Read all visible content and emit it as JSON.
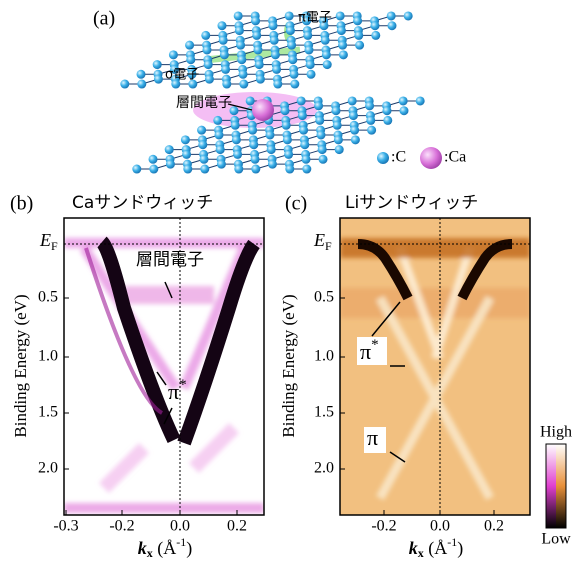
{
  "panel_a": {
    "label": "(a)",
    "pi_electron": "π電子",
    "sigma_electron": "σ電子",
    "interlayer_electron": "層間電子",
    "legend_c": ":C",
    "legend_ca": ":Ca"
  },
  "panel_b": {
    "label": "(b)",
    "title": "Caサンドウィッチ",
    "ef": [
      "E",
      "F"
    ],
    "y_label": "Binding Energy (eV)",
    "y_ticks": [
      "0.5",
      "1.0",
      "1.5",
      "2.0"
    ],
    "x_ticks": [
      "-0.3",
      "-0.2",
      "0.0",
      "0.2"
    ],
    "x_label": [
      "k",
      "x",
      " (Å",
      "-1",
      ")"
    ],
    "annotation_interlayer": "層間電子",
    "annotation_pi_star": [
      "π",
      "*"
    ]
  },
  "panel_c": {
    "label": "(c)",
    "title": "Liサンドウィッチ",
    "ef": [
      "E",
      "F"
    ],
    "y_label": "Binding Energy (eV)",
    "y_ticks": [
      "0.5",
      "1.0",
      "1.5",
      "2.0"
    ],
    "x_ticks": [
      "-0.2",
      "0.0",
      "0.2"
    ],
    "x_label": [
      "k",
      "x",
      " (Å",
      "-1",
      ")"
    ],
    "annotation_pi_star": [
      "π",
      "*"
    ],
    "annotation_pi": "π"
  },
  "colorbar": {
    "high": "High",
    "low": "Low"
  }
}
